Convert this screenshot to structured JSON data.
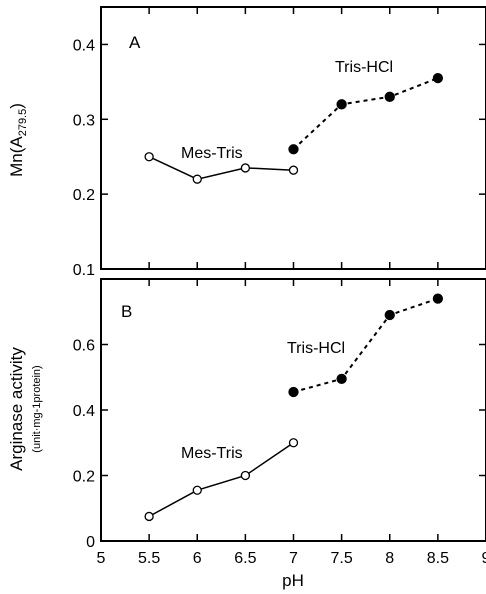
{
  "chart_data": [
    {
      "type": "line",
      "panel": "A",
      "ylabel": "Mn(A279.5)",
      "ylabel_main": "Mn(A",
      "ylabel_sub": "279.5",
      "ylabel_close": ")",
      "xlim": [
        5,
        9
      ],
      "ylim": [
        0.1,
        0.45
      ],
      "ytick_values": [
        0.1,
        0.2,
        0.3,
        0.4
      ],
      "ytick_labels": [
        "0.1",
        "0.2",
        "0.3",
        "0.4"
      ],
      "grid": false,
      "series": [
        {
          "name": "Mes-Tris",
          "marker": "open-circle",
          "line": "solid",
          "x": [
            5.5,
            6,
            6.5,
            7
          ],
          "y": [
            0.25,
            0.22,
            0.235,
            0.232
          ]
        },
        {
          "name": "Tris-HCl",
          "marker": "filled-circle",
          "line": "dashed",
          "x": [
            7,
            7.5,
            8,
            8.5
          ],
          "y": [
            0.26,
            0.32,
            0.33,
            0.355
          ]
        }
      ]
    },
    {
      "type": "line",
      "panel": "B",
      "ylabel": "Arginase activity",
      "ylabel_units": "(unit·mg-1protein)",
      "xlabel": "pH",
      "xlim": [
        5,
        9
      ],
      "ylim": [
        0,
        0.8
      ],
      "xtick_values": [
        5,
        5.5,
        6,
        6.5,
        7,
        7.5,
        8,
        8.5,
        9
      ],
      "xtick_labels": [
        "5",
        "5.5",
        "6",
        "6.5",
        "7",
        "7.5",
        "8",
        "8.5",
        "9"
      ],
      "ytick_values": [
        0,
        0.2,
        0.4,
        0.6
      ],
      "ytick_labels": [
        "0",
        "0.2",
        "0.4",
        "0.6"
      ],
      "grid": false,
      "series": [
        {
          "name": "Mes-Tris",
          "marker": "open-circle",
          "line": "solid",
          "x": [
            5.5,
            6,
            6.5,
            7
          ],
          "y": [
            0.075,
            0.155,
            0.2,
            0.3
          ]
        },
        {
          "name": "Tris-HCl",
          "marker": "filled-circle",
          "line": "dashed",
          "x": [
            7,
            7.5,
            8,
            8.5
          ],
          "y": [
            0.455,
            0.495,
            0.69,
            0.74
          ]
        }
      ]
    }
  ]
}
